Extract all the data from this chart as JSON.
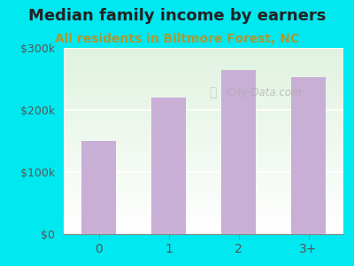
{
  "title": "Median family income by earners",
  "subtitle": "All residents in Biltmore Forest, NC",
  "categories": [
    "0",
    "1",
    "2",
    "3+"
  ],
  "values": [
    150000,
    220000,
    265000,
    253000
  ],
  "bar_color": "#c9aed6",
  "ylim": [
    0,
    300000
  ],
  "ytick_values": [
    0,
    100000,
    200000,
    300000
  ],
  "ytick_labels": [
    "$0",
    "$100k",
    "$200k",
    "$300k"
  ],
  "title_fontsize": 13,
  "subtitle_fontsize": 10,
  "background_outer": "#00e8f0",
  "watermark": "  City-Data.com",
  "watermark_icon": "Q"
}
